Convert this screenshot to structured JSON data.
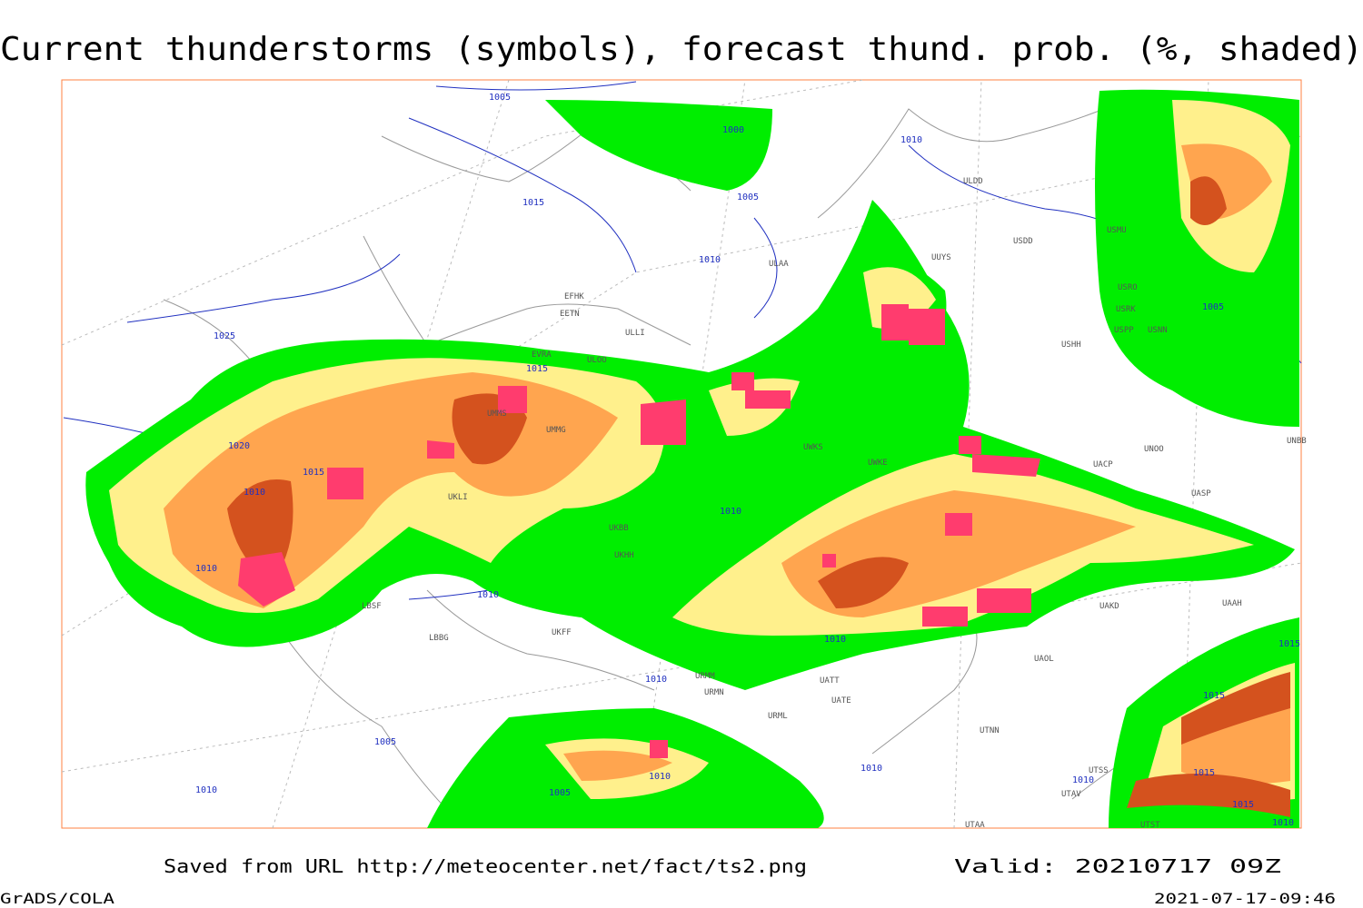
{
  "title": "Current thunderstorms (symbols), forecast thund. prob. (%, shaded)",
  "footer": {
    "source": "Saved from URL http://meteocenter.net/fact/ts2.png",
    "valid": "Valid: 20210717 09Z",
    "software": "GrADS/COLA",
    "timestamp": "2021-07-17-09:46"
  },
  "isobar_labels": [
    "1005",
    "1000",
    "1005",
    "1015",
    "1010",
    "1010",
    "1025",
    "1015",
    "1020",
    "1015",
    "1010",
    "1010",
    "1010",
    "1010",
    "1010",
    "1005",
    "1015",
    "1015",
    "1010",
    "1005",
    "1010",
    "1010",
    "1005",
    "1010",
    "1010",
    "1015",
    "1015",
    "1010"
  ],
  "station_labels": [
    "ULDD",
    "USDD",
    "USMU",
    "UUYS",
    "ULAA",
    "EFHK",
    "EETN",
    "ULLI",
    "USRO",
    "USRK",
    "USPP",
    "USNN",
    "USHH",
    "ULOO",
    "EVRA",
    "UMMS",
    "UMMG",
    "UKLI",
    "UKBB",
    "UKHH",
    "UWKS",
    "UWKE",
    "UNOO",
    "UNBB",
    "UACP",
    "UASP",
    "UAKD",
    "UAAH",
    "UATE",
    "UTNN",
    "URMM",
    "URMN",
    "URML",
    "UATT",
    "LBSF",
    "LBBG",
    "UKFF",
    "UAOL",
    "UTSS",
    "UTST",
    "UTAA",
    "UTAV"
  ]
}
